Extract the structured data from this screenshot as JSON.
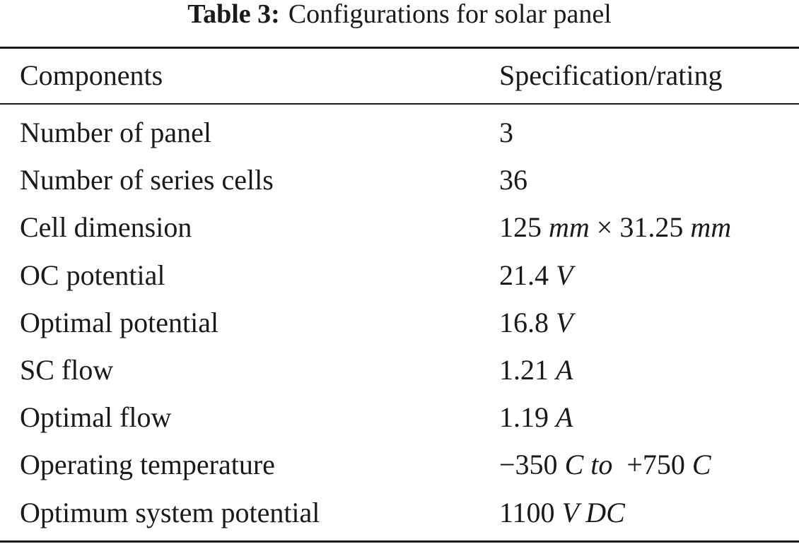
{
  "caption": {
    "label": "Table 3:",
    "text": "Configurations for solar panel"
  },
  "table": {
    "headers": [
      "Components",
      "Specification/rating"
    ],
    "rows": [
      {
        "component": "Number of panel",
        "spec": [
          {
            "t": "3"
          }
        ]
      },
      {
        "component": "Number of series cells",
        "spec": [
          {
            "t": "36"
          }
        ]
      },
      {
        "component": "Cell dimension",
        "spec": [
          {
            "t": "125 "
          },
          {
            "t": "mm",
            "i": true
          },
          {
            "t": " × 31.25 "
          },
          {
            "t": "mm",
            "i": true
          }
        ]
      },
      {
        "component": "OC potential",
        "spec": [
          {
            "t": "21.4 "
          },
          {
            "t": "V",
            "i": true
          }
        ]
      },
      {
        "component": "Optimal potential",
        "spec": [
          {
            "t": "16.8 "
          },
          {
            "t": "V",
            "i": true
          }
        ]
      },
      {
        "component": "SC flow",
        "spec": [
          {
            "t": "1.21 "
          },
          {
            "t": "A",
            "i": true
          }
        ]
      },
      {
        "component": "Optimal flow",
        "spec": [
          {
            "t": "1.19 "
          },
          {
            "t": "A",
            "i": true
          }
        ]
      },
      {
        "component": "Operating temperature",
        "spec": [
          {
            "t": "−350 "
          },
          {
            "t": "C to",
            "i": true
          },
          {
            "t": "  +750 "
          },
          {
            "t": "C",
            "i": true
          }
        ]
      },
      {
        "component": "Optimum system potential",
        "spec": [
          {
            "t": "1100 "
          },
          {
            "t": "V DC",
            "i": true
          }
        ]
      }
    ]
  }
}
